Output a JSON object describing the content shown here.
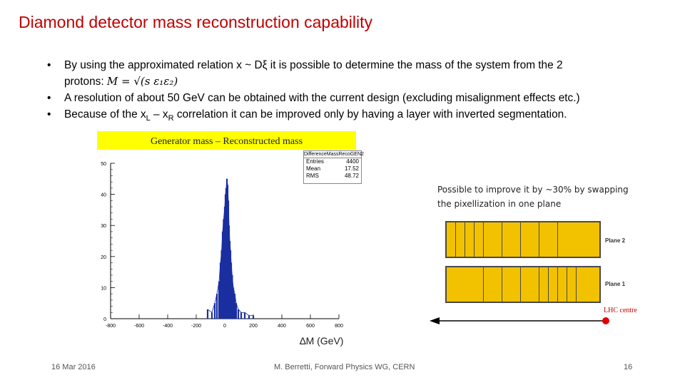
{
  "slide": {
    "title": "Diamond detector mass reconstruction capability",
    "bullets": {
      "b1_text": "By using the approximated relation x ~ Dξ it is possible to determine the mass of the system from the 2",
      "b1_cont_prefix": "protons:",
      "b1_formula": "M = √(s ε₁ε₂)",
      "b2_text": "A resolution of about 50 GeV can be obtained with the current design (excluding misalignment effects etc.)",
      "b3_prefix": "Because of the x",
      "b3_sub_l": "L",
      "b3_dash": " – x",
      "b3_sub_r": "R",
      "b3_suffix": " correlation it can be improved only by having a layer with inverted segmentation."
    },
    "generator_label": "Generator mass – Reconstructed mass",
    "improve_text": "Possible to improve it by ~30% by swapping the pixellization in one plane",
    "plane2_label": "Plane 2",
    "plane1_label": "Plane 1",
    "lhc_label": "LHC centre",
    "xaxis_label": "∆M (GeV)"
  },
  "stats_box": {
    "title": "DifferenceMassRecoGEN2",
    "rows": [
      {
        "label": "Entries",
        "value": "4400"
      },
      {
        "label": "Mean",
        "value": "17.52"
      },
      {
        "label": "RMS",
        "value": "48.72"
      }
    ]
  },
  "footer": {
    "date": "16 Mar 2016",
    "author": "M. Berretti, Forward Physics WG,  CERN",
    "page": "16"
  },
  "chart_data": {
    "type": "bar",
    "xlim": [
      -800,
      800
    ],
    "ylim": [
      0,
      50
    ],
    "x_ticks": [
      "-800",
      "-600",
      "-400",
      "-200",
      "0",
      "200",
      "400",
      "600",
      "800"
    ],
    "y_ticks": [
      "0",
      "10",
      "20",
      "30",
      "40",
      "50"
    ],
    "xlabel": "∆M (GeV)",
    "legend": "Entries 4400, Mean 17.52, RMS 48.72",
    "x": [
      -120,
      -90,
      -70,
      -55,
      -40,
      -30,
      -22,
      -15,
      -8,
      0,
      5,
      10,
      15,
      20,
      25,
      30,
      35,
      40,
      45,
      52,
      60,
      70,
      80,
      95,
      115,
      140,
      170,
      200
    ],
    "values": [
      3,
      2,
      5,
      8,
      12,
      18,
      22,
      28,
      32,
      36,
      40,
      42,
      45,
      43,
      38,
      30,
      25,
      22,
      18,
      14,
      10,
      8,
      5,
      3,
      2,
      2,
      1,
      1
    ]
  }
}
